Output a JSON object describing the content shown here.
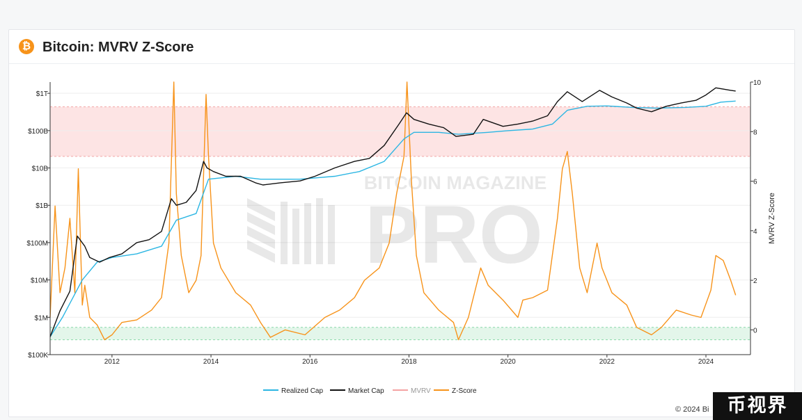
{
  "header": {
    "title": "Bitcoin: MVRV Z-Score",
    "logo_glyph": "₿"
  },
  "watermark": {
    "top": "BITCOIN MAGAZINE",
    "bottom": "PRO"
  },
  "footer": {
    "copyright": "© 2024 Bi",
    "badge": "币视界"
  },
  "colors": {
    "realized_cap": "#2bb6e3",
    "market_cap": "#111111",
    "mvrv": "#f4a3a3",
    "z_score": "#f7931a",
    "red_band": "#fde4e4",
    "green_band": "#e3f6ea"
  },
  "chart_data": {
    "type": "line",
    "title": "",
    "x_ticks": [
      "2012",
      "2014",
      "2016",
      "2018",
      "2020",
      "2022",
      "2024"
    ],
    "x_range": [
      2010.75,
      2024.9
    ],
    "left_axis": {
      "scale": "log",
      "range": [
        100000,
        2000000000000
      ],
      "ticks": [
        {
          "value": 1000000000000,
          "label": "$1T"
        },
        {
          "value": 100000000000,
          "label": "$100B"
        },
        {
          "value": 10000000000,
          "label": "$10B"
        },
        {
          "value": 1000000000,
          "label": "$1B"
        },
        {
          "value": 100000000,
          "label": "$100M"
        },
        {
          "value": 10000000,
          "label": "$10M"
        },
        {
          "value": 1000000,
          "label": "$1M"
        },
        {
          "value": 100000,
          "label": "$100K"
        }
      ]
    },
    "right_axis": {
      "label": "MVRV Z-Score",
      "range": [
        -1,
        10
      ],
      "ticks": [
        0,
        2,
        4,
        6,
        8,
        10
      ]
    },
    "bands": [
      {
        "axis": "right",
        "from": 7,
        "to": 9,
        "color": "red_band"
      },
      {
        "axis": "right",
        "from": -0.4,
        "to": 0.1,
        "color": "green_band"
      }
    ],
    "legend": [
      "Realized Cap",
      "Market Cap",
      "MVRV",
      "Z-Score"
    ],
    "legend_position": "bottom-center",
    "series": [
      {
        "name": "Market Cap",
        "axis": "left",
        "color": "market_cap",
        "x": [
          2010.75,
          2010.95,
          2011.15,
          2011.3,
          2011.45,
          2011.55,
          2011.75,
          2011.95,
          2012.2,
          2012.5,
          2012.75,
          2013.0,
          2013.2,
          2013.3,
          2013.5,
          2013.7,
          2013.85,
          2013.92,
          2014.05,
          2014.3,
          2014.6,
          2014.9,
          2015.05,
          2015.4,
          2015.8,
          2016.1,
          2016.5,
          2016.9,
          2017.2,
          2017.5,
          2017.8,
          2017.95,
          2018.1,
          2018.4,
          2018.7,
          2018.95,
          2019.3,
          2019.5,
          2019.9,
          2020.2,
          2020.5,
          2020.8,
          2021.0,
          2021.2,
          2021.5,
          2021.85,
          2022.1,
          2022.4,
          2022.6,
          2022.9,
          2023.2,
          2023.5,
          2023.8,
          2024.0,
          2024.2,
          2024.5,
          2024.6
        ],
        "values": [
          300000,
          1500000,
          5000000,
          150000000,
          80000000,
          40000000,
          30000000,
          40000000,
          50000000,
          100000000,
          120000000,
          200000000,
          1500000000,
          1000000000,
          1200000000,
          2500000000,
          15000000000,
          10000000000,
          8000000000,
          6000000000,
          6000000000,
          4000000000,
          3500000000,
          4000000000,
          4500000000,
          6000000000,
          10000000000,
          15000000000,
          18000000000,
          40000000000,
          150000000000,
          300000000000,
          200000000000,
          150000000000,
          120000000000,
          70000000000,
          80000000000,
          200000000000,
          130000000000,
          150000000000,
          180000000000,
          250000000000,
          600000000000,
          1100000000000,
          600000000000,
          1200000000000,
          800000000000,
          550000000000,
          400000000000,
          320000000000,
          450000000000,
          550000000000,
          650000000000,
          900000000000,
          1400000000000,
          1200000000000,
          1150000000000
        ]
      },
      {
        "name": "Realized Cap",
        "axis": "left",
        "color": "realized_cap",
        "x": [
          2010.75,
          2011.0,
          2011.4,
          2011.7,
          2012.0,
          2012.5,
          2013.0,
          2013.3,
          2013.7,
          2013.95,
          2014.5,
          2015.0,
          2015.8,
          2016.5,
          2017.0,
          2017.5,
          2017.9,
          2018.1,
          2018.6,
          2019.0,
          2019.6,
          2020.0,
          2020.5,
          2020.9,
          2021.2,
          2021.6,
          2022.0,
          2022.5,
          2023.0,
          2023.6,
          2024.0,
          2024.3,
          2024.6
        ],
        "values": [
          300000,
          1000000,
          10000000,
          30000000,
          40000000,
          50000000,
          80000000,
          400000000,
          600000000,
          5000000000,
          6000000000,
          5000000000,
          5000000000,
          6000000000,
          8000000000,
          15000000000,
          60000000000,
          90000000000,
          90000000000,
          80000000000,
          90000000000,
          100000000000,
          110000000000,
          150000000000,
          350000000000,
          450000000000,
          460000000000,
          420000000000,
          400000000000,
          420000000000,
          450000000000,
          580000000000,
          620000000000
        ]
      },
      {
        "name": "Z-Score",
        "axis": "right",
        "color": "z_score",
        "x": [
          2010.75,
          2010.85,
          2010.95,
          2011.05,
          2011.15,
          2011.25,
          2011.32,
          2011.4,
          2011.45,
          2011.55,
          2011.7,
          2011.85,
          2012.0,
          2012.2,
          2012.5,
          2012.8,
          2013.0,
          2013.15,
          2013.25,
          2013.3,
          2013.4,
          2013.55,
          2013.7,
          2013.8,
          2013.9,
          2013.95,
          2014.05,
          2014.2,
          2014.5,
          2014.8,
          2015.0,
          2015.2,
          2015.5,
          2015.9,
          2016.3,
          2016.6,
          2016.9,
          2017.1,
          2017.4,
          2017.6,
          2017.75,
          2017.9,
          2017.96,
          2018.05,
          2018.15,
          2018.3,
          2018.6,
          2018.9,
          2019.0,
          2019.2,
          2019.45,
          2019.6,
          2019.9,
          2020.2,
          2020.3,
          2020.5,
          2020.8,
          2021.0,
          2021.1,
          2021.2,
          2021.3,
          2021.45,
          2021.6,
          2021.8,
          2021.9,
          2022.1,
          2022.4,
          2022.6,
          2022.9,
          2023.1,
          2023.4,
          2023.7,
          2023.9,
          2024.1,
          2024.2,
          2024.35,
          2024.5,
          2024.6
        ],
        "values": [
          0.5,
          5,
          1.5,
          2.5,
          4.5,
          1.5,
          6.5,
          1,
          1.8,
          0.5,
          0.2,
          -0.4,
          -0.2,
          0.3,
          0.4,
          0.8,
          1.3,
          3.5,
          10,
          5.5,
          3,
          1.5,
          2,
          3,
          9.5,
          7,
          3.5,
          2.5,
          1.5,
          1,
          0.3,
          -0.3,
          0,
          -0.2,
          0.5,
          0.8,
          1.3,
          2,
          2.5,
          3.5,
          5.5,
          7,
          10,
          6,
          3,
          1.5,
          0.8,
          0.3,
          -0.4,
          0.5,
          2.5,
          1.8,
          1.2,
          0.5,
          1.2,
          1.3,
          1.6,
          4.5,
          6.5,
          7.2,
          5.5,
          2.5,
          1.5,
          3.5,
          2.5,
          1.5,
          1,
          0.1,
          -0.2,
          0.1,
          0.8,
          0.6,
          0.5,
          1.6,
          3,
          2.8,
          2,
          1.4
        ]
      },
      {
        "name": "MVRV",
        "axis": "right",
        "color": "mvrv",
        "x": [],
        "values": []
      }
    ]
  }
}
